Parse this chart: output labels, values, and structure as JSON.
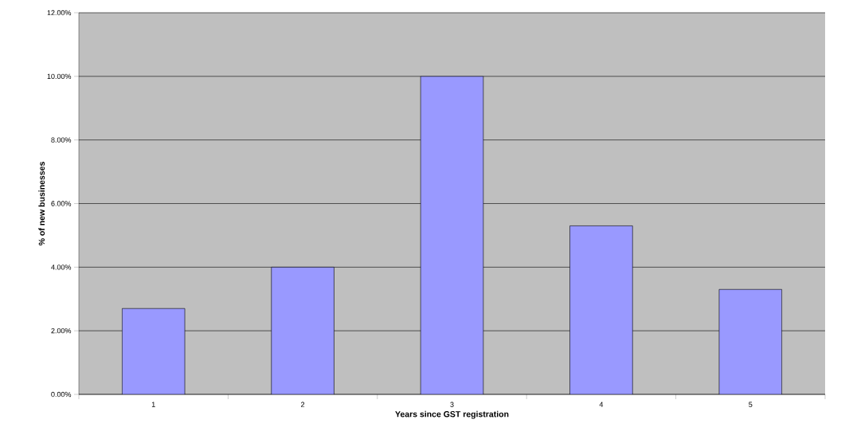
{
  "chart_data": {
    "type": "bar",
    "xlabel": "Years since GST registration",
    "ylabel": "% of new businesses",
    "categories": [
      "1",
      "2",
      "3",
      "4",
      "5"
    ],
    "values": [
      2.7,
      4.0,
      10.0,
      5.3,
      3.3
    ],
    "color": "#9999ff",
    "ylim": [
      0,
      12
    ],
    "yticks": [
      {
        "value": 0,
        "label": "0.00%"
      },
      {
        "value": 2,
        "label": "2.00%"
      },
      {
        "value": 4,
        "label": "4.00%"
      },
      {
        "value": 6,
        "label": "6.00%"
      },
      {
        "value": 8,
        "label": "8.00%"
      },
      {
        "value": 10,
        "label": "10.00%"
      },
      {
        "value": 12,
        "label": "12.00%"
      }
    ],
    "grid": "y"
  }
}
